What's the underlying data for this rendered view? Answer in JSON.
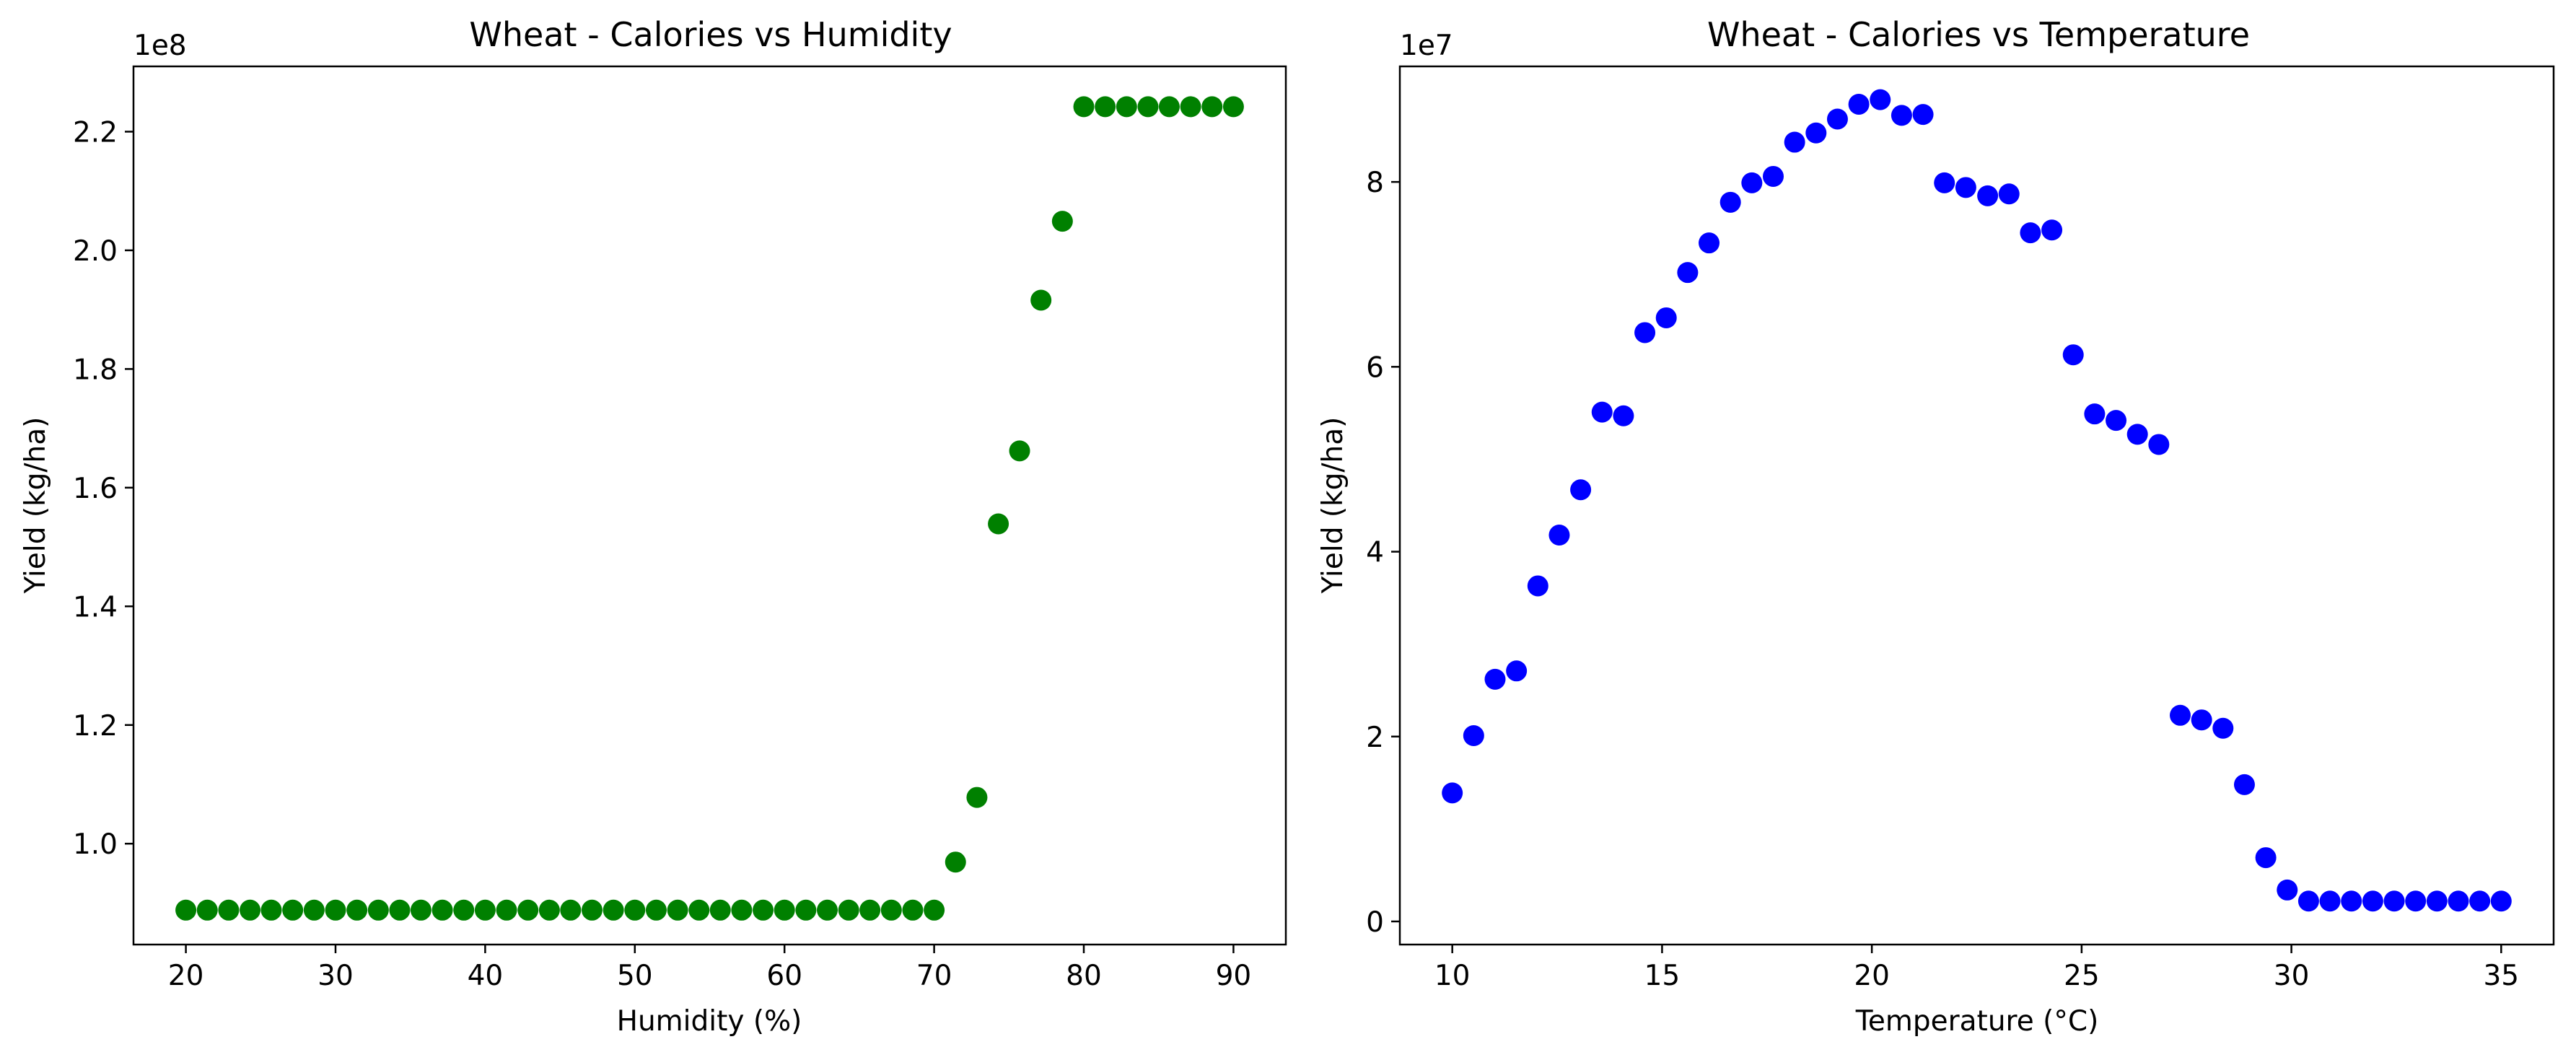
{
  "chart_data": [
    {
      "type": "scatter",
      "title": "Wheat - Calories vs Humidity",
      "xlabel": "Humidity (%)",
      "ylabel": "Yield (kg/ha)",
      "y_offset_label": "1e8",
      "xlim": [
        16.5,
        93.5
      ],
      "ylim": [
        0.83,
        2.31
      ],
      "xticks": [
        20,
        30,
        40,
        50,
        60,
        70,
        80,
        90
      ],
      "xtick_labels": [
        "20",
        "30",
        "40",
        "50",
        "60",
        "70",
        "80",
        "90"
      ],
      "yticks": [
        1.0,
        1.2,
        1.4,
        1.6,
        1.8,
        2.0,
        2.2
      ],
      "ytick_labels": [
        "1.0",
        "1.2",
        "1.4",
        "1.6",
        "1.8",
        "2.0",
        "2.2"
      ],
      "series_color": "#008000",
      "x": [
        20.0,
        21.43,
        22.86,
        24.29,
        25.71,
        27.14,
        28.57,
        30.0,
        31.43,
        32.86,
        34.29,
        35.71,
        37.14,
        38.57,
        40.0,
        41.43,
        42.86,
        44.29,
        45.71,
        47.14,
        48.57,
        50.0,
        51.43,
        52.86,
        54.29,
        55.71,
        57.14,
        58.57,
        60.0,
        61.43,
        62.86,
        64.29,
        65.71,
        67.14,
        68.57,
        70.0,
        71.43,
        72.86,
        74.29,
        75.71,
        77.14,
        78.57,
        80.0,
        81.43,
        82.86,
        84.29,
        85.71,
        87.14,
        88.57,
        90.0
      ],
      "y": [
        0.888,
        0.888,
        0.888,
        0.888,
        0.888,
        0.888,
        0.888,
        0.888,
        0.888,
        0.888,
        0.888,
        0.888,
        0.888,
        0.888,
        0.888,
        0.888,
        0.888,
        0.888,
        0.888,
        0.888,
        0.888,
        0.888,
        0.888,
        0.888,
        0.888,
        0.888,
        0.888,
        0.888,
        0.888,
        0.888,
        0.888,
        0.888,
        0.888,
        0.888,
        0.888,
        0.888,
        0.969,
        1.078,
        1.539,
        1.662,
        1.916,
        2.049,
        2.242,
        2.242,
        2.242,
        2.242,
        2.242,
        2.242,
        2.242,
        2.242
      ]
    },
    {
      "type": "scatter",
      "title": "Wheat - Calories vs Temperature",
      "xlabel": "Temperature (°C)",
      "ylabel": "Yield (kg/ha)",
      "y_offset_label": "1e7",
      "xlim": [
        8.75,
        36.25
      ],
      "ylim": [
        -0.25,
        9.25
      ],
      "xticks": [
        10,
        15,
        20,
        25,
        30,
        35
      ],
      "xtick_labels": [
        "10",
        "15",
        "20",
        "25",
        "30",
        "35"
      ],
      "yticks": [
        0,
        2,
        4,
        6,
        8
      ],
      "ytick_labels": [
        "0",
        "2",
        "4",
        "6",
        "8"
      ],
      "series_color": "#0000ff",
      "x": [
        10.0,
        10.51,
        11.02,
        11.53,
        12.04,
        12.55,
        13.06,
        13.57,
        14.08,
        14.59,
        15.1,
        15.61,
        16.12,
        16.63,
        17.14,
        17.65,
        18.16,
        18.67,
        19.18,
        19.69,
        20.2,
        20.71,
        21.22,
        21.73,
        22.24,
        22.76,
        23.27,
        23.78,
        24.29,
        24.8,
        25.31,
        25.82,
        26.33,
        26.84,
        27.35,
        27.86,
        28.37,
        28.88,
        29.39,
        29.9,
        30.41,
        30.92,
        31.43,
        31.94,
        32.45,
        32.96,
        33.47,
        33.98,
        34.49,
        35.0
      ],
      "y": [
        1.39,
        2.01,
        2.62,
        2.71,
        3.63,
        4.18,
        4.67,
        5.51,
        5.47,
        6.37,
        6.53,
        7.02,
        7.34,
        7.78,
        7.99,
        8.06,
        8.43,
        8.53,
        8.68,
        8.84,
        8.89,
        8.72,
        8.73,
        7.99,
        7.94,
        7.85,
        7.87,
        7.45,
        7.48,
        6.13,
        5.49,
        5.42,
        5.27,
        5.16,
        2.23,
        2.18,
        2.09,
        1.48,
        0.69,
        0.34,
        0.22,
        0.22,
        0.22,
        0.22,
        0.22,
        0.22,
        0.22,
        0.22,
        0.22,
        0.22
      ]
    }
  ]
}
